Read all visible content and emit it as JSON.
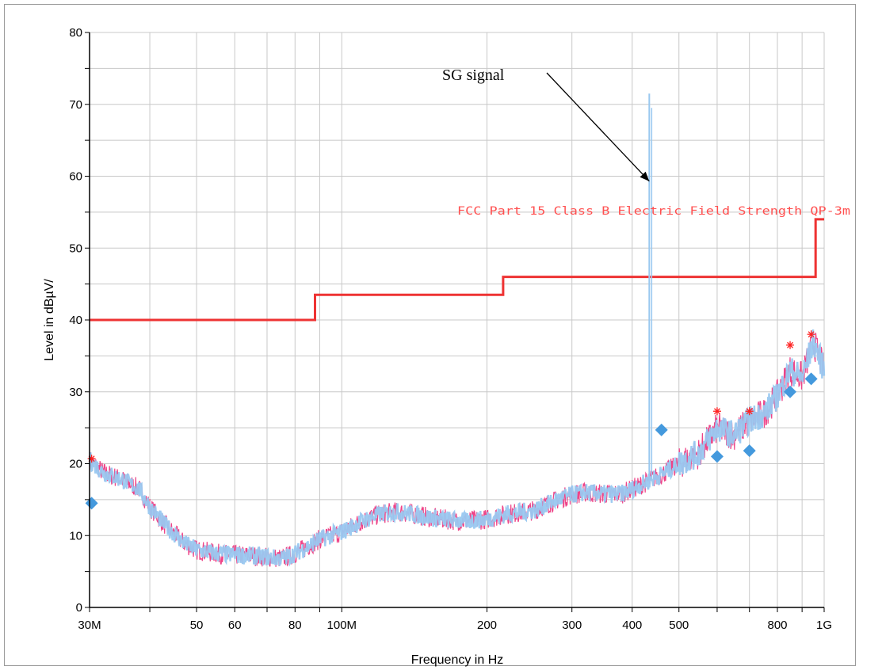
{
  "chart_data": {
    "type": "line",
    "xlabel": "Frequency in Hz",
    "ylabel": "Level in dBµV/",
    "xscale": "log",
    "xlim": [
      30000000,
      1000000000
    ],
    "ylim": [
      0,
      80
    ],
    "grid": true,
    "yticks": [
      0,
      10,
      20,
      30,
      40,
      50,
      60,
      70,
      80
    ],
    "xticks": [
      {
        "value": 30000000,
        "label": "30M"
      },
      {
        "value": 50000000,
        "label": "50"
      },
      {
        "value": 60000000,
        "label": "60"
      },
      {
        "value": 80000000,
        "label": "80"
      },
      {
        "value": 100000000,
        "label": "100M"
      },
      {
        "value": 200000000,
        "label": "200"
      },
      {
        "value": 300000000,
        "label": "300"
      },
      {
        "value": 400000000,
        "label": "400"
      },
      {
        "value": 500000000,
        "label": "500"
      },
      {
        "value": 800000000,
        "label": "800"
      },
      {
        "value": 1000000000,
        "label": "1G"
      }
    ],
    "limit_line": {
      "label": "FCC Part 15 Class B Electric Field Strength QP-3m",
      "color": "#ee3333",
      "points": [
        [
          30000000,
          40.0
        ],
        [
          88000000,
          40.0
        ],
        [
          88000000,
          43.5
        ],
        [
          216000000,
          43.5
        ],
        [
          216000000,
          46.0
        ],
        [
          960000000,
          46.0
        ],
        [
          960000000,
          54.0
        ],
        [
          1000000000,
          54.0
        ]
      ]
    },
    "series": [
      {
        "color_trace2": "#ee4488",
        "color_trace1": "#99c8f0",
        "points": [
          [
            30000000,
            20.5
          ],
          [
            32000000,
            18.8
          ],
          [
            35000000,
            17.8
          ],
          [
            38000000,
            16.5
          ],
          [
            40000000,
            14.0
          ],
          [
            43000000,
            11.5
          ],
          [
            47000000,
            9.0
          ],
          [
            50000000,
            8.0
          ],
          [
            55000000,
            7.5
          ],
          [
            60000000,
            7.3
          ],
          [
            65000000,
            7.2
          ],
          [
            70000000,
            7.0
          ],
          [
            75000000,
            6.8
          ],
          [
            80000000,
            7.5
          ],
          [
            85000000,
            8.5
          ],
          [
            90000000,
            9.5
          ],
          [
            100000000,
            10.5
          ],
          [
            110000000,
            12.0
          ],
          [
            120000000,
            13.0
          ],
          [
            130000000,
            13.3
          ],
          [
            140000000,
            13.0
          ],
          [
            150000000,
            12.6
          ],
          [
            160000000,
            12.3
          ],
          [
            180000000,
            12.0
          ],
          [
            200000000,
            12.3
          ],
          [
            220000000,
            13.0
          ],
          [
            250000000,
            13.5
          ],
          [
            280000000,
            15.0
          ],
          [
            300000000,
            15.7
          ],
          [
            320000000,
            16.0
          ],
          [
            350000000,
            15.8
          ],
          [
            380000000,
            15.8
          ],
          [
            400000000,
            16.5
          ],
          [
            430000000,
            17.5
          ],
          [
            460000000,
            18.5
          ],
          [
            500000000,
            20.0
          ],
          [
            550000000,
            21.5
          ],
          [
            600000000,
            25.0
          ],
          [
            650000000,
            24.0
          ],
          [
            700000000,
            26.0
          ],
          [
            750000000,
            27.0
          ],
          [
            800000000,
            29.5
          ],
          [
            850000000,
            33.0
          ],
          [
            900000000,
            32.0
          ],
          [
            950000000,
            37.0
          ],
          [
            1000000000,
            33.0
          ]
        ]
      }
    ],
    "qp_markers": {
      "color": "#4499dd",
      "points": [
        [
          30300000,
          14.5
        ],
        [
          460000000,
          24.7
        ],
        [
          600000000,
          21.0
        ],
        [
          700000000,
          21.8
        ],
        [
          850000000,
          30.0
        ],
        [
          940000000,
          31.8
        ]
      ]
    },
    "peak_markers": {
      "color": "#ff2222",
      "points": [
        [
          30300000,
          20.7
        ],
        [
          600000000,
          27.3
        ],
        [
          700000000,
          27.3
        ],
        [
          850000000,
          36.5
        ],
        [
          940000000,
          38.0
        ]
      ]
    },
    "sg_signal": {
      "x": 434000000,
      "peak": 71.5
    }
  },
  "annotation": {
    "text": "SG signal",
    "target_x": 434000000,
    "target_y": 59.3
  }
}
